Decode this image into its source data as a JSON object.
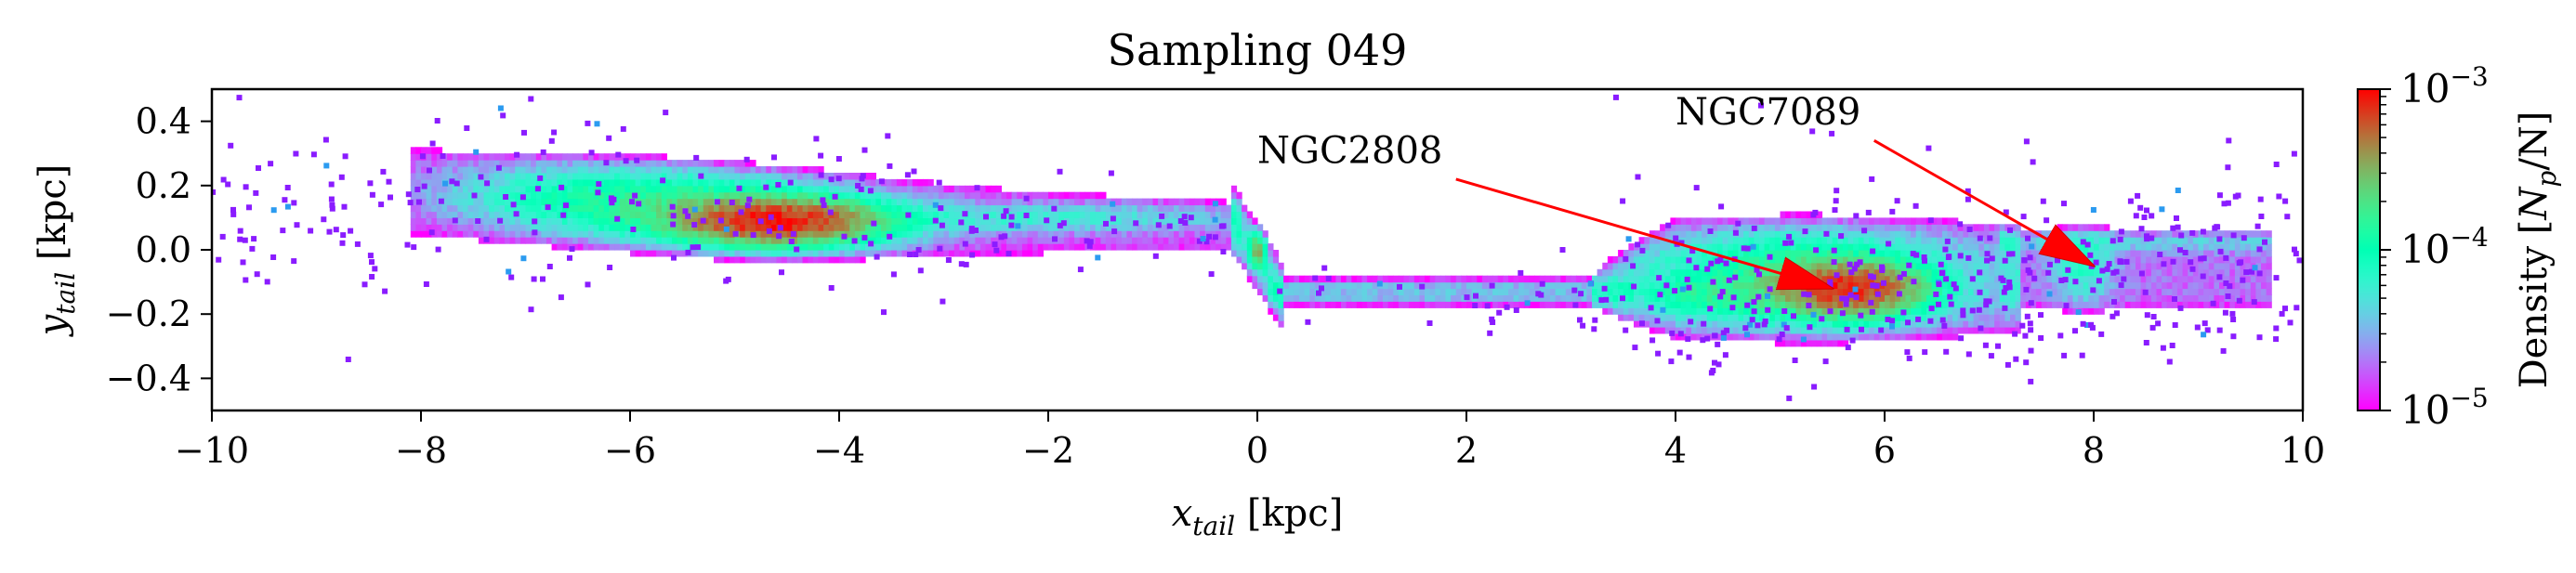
{
  "chart_data": {
    "type": "heatmap",
    "title": "Sampling 049",
    "xlabel": {
      "main": "x",
      "sub": "tail",
      "unit": " [kpc]"
    },
    "ylabel": {
      "main": "y",
      "sub": "tail",
      "unit": " [kpc]"
    },
    "xlim": [
      -10,
      10
    ],
    "ylim": [
      -0.5,
      0.5
    ],
    "xticks": [
      -10,
      -8,
      -6,
      -4,
      -2,
      0,
      2,
      4,
      6,
      8,
      10
    ],
    "xtick_labels": [
      "−10",
      "−8",
      "−6",
      "−4",
      "−2",
      "0",
      "2",
      "4",
      "6",
      "8",
      "10"
    ],
    "yticks": [
      0.4,
      0.2,
      0.0,
      -0.2,
      -0.4
    ],
    "ytick_labels": [
      "0.4",
      "0.2",
      "0.0",
      "−0.2",
      "−0.4"
    ],
    "colorbar": {
      "label": {
        "main": "Density [",
        "var": "N",
        "sub": "p",
        "rest": "/N]"
      },
      "scale": "log",
      "range": [
        1e-05,
        0.001
      ],
      "ticks": [
        {
          "value": 0.001,
          "base": "10",
          "exp": "−3"
        },
        {
          "value": 0.0001,
          "base": "10",
          "exp": "−4"
        },
        {
          "value": 1e-05,
          "base": "10",
          "exp": "−5"
        }
      ],
      "colormap": "rainbow"
    },
    "structures": [
      {
        "name": "leading-tail-band",
        "x": [
          -8.0,
          -0.2
        ],
        "y_start": [
          0.05,
          0.3
        ],
        "y_end": [
          0.02,
          0.13
        ],
        "peak": [
          -4.6,
          0.09
        ],
        "peak_density": 0.0008
      },
      {
        "name": "center-jump",
        "x": [
          -0.2,
          0.2
        ],
        "y": [
          -0.15,
          0.1
        ]
      },
      {
        "name": "trailing-thin-band",
        "x": [
          0.1,
          3.5
        ],
        "y": [
          -0.18,
          -0.08
        ]
      },
      {
        "name": "trailing-wide-band",
        "x": [
          3.5,
          7.2
        ],
        "y": [
          -0.25,
          0.08
        ],
        "peak": [
          5.6,
          -0.12
        ],
        "peak_density": 0.0007
      },
      {
        "name": "far-tail-band",
        "x": [
          7.2,
          9.6
        ],
        "y": [
          -0.2,
          0.06
        ],
        "peak": [
          7.9,
          -0.05
        ],
        "peak_density": 8e-05
      }
    ],
    "annotations": [
      {
        "text": "NGC2808",
        "text_pos": [
          0.0,
          0.27
        ],
        "arrow_from": [
          1.9,
          0.22
        ],
        "arrow_to": [
          5.5,
          -0.12
        ],
        "color": "#ff0000"
      },
      {
        "text": "NGC7089",
        "text_pos": [
          4.0,
          0.39
        ],
        "arrow_from": [
          5.9,
          0.34
        ],
        "arrow_to": [
          8.0,
          -0.05
        ],
        "color": "#ff0000"
      }
    ],
    "grid": false,
    "legend": "none"
  }
}
